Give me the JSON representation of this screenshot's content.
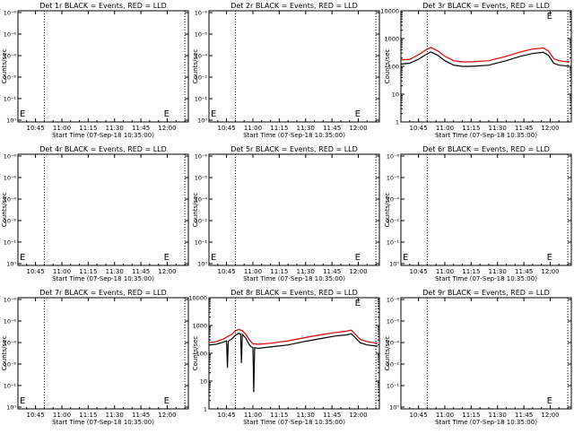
{
  "window": {
    "background": "#ffffff"
  },
  "colors": {
    "events": "#000000",
    "lld": "#dd0000",
    "axis": "#000000",
    "marker_lines": "#000000"
  },
  "common": {
    "xlabel": "Start Time (07-Sep-18 10:35:00)",
    "ylabel": "Counts/sec",
    "x_tick_labels": [
      "10:45",
      "11:00",
      "11:15",
      "11:30",
      "11:45",
      "12:00"
    ],
    "x_range_minutes": [
      0,
      97
    ],
    "event_marker_minutes": [
      15,
      95
    ],
    "edge_marker": "E"
  },
  "chart_data": [
    {
      "name": "Det 1r",
      "title": "Det 1r BLACK = Events, RED = LLD",
      "type": "line",
      "yscale": "log",
      "y_tick_labels": [
        "10⁻⁸",
        "10⁻⁶",
        "10⁻⁴",
        "10⁻²",
        "10⁻¹",
        "10⁰"
      ],
      "edge_markers": [
        {
          "label": "E",
          "minute": 0
        },
        {
          "label": "E",
          "minute": 82
        }
      ],
      "series": []
    },
    {
      "name": "Det 2r",
      "title": "Det 2r BLACK = Events, RED = LLD",
      "type": "line",
      "yscale": "log",
      "y_tick_labels": [
        "10⁻⁸",
        "10⁻⁶",
        "10⁻⁴",
        "10⁻²",
        "10⁻¹",
        "10⁰"
      ],
      "edge_markers": [
        {
          "label": "E",
          "minute": 0
        },
        {
          "label": "E",
          "minute": 82
        }
      ],
      "series": []
    },
    {
      "name": "Det 3r",
      "title": "Det 3r BLACK = Events, RED = LLD",
      "type": "line",
      "yscale": "log",
      "ylim": [
        1,
        10000
      ],
      "y_tick_labels": [
        "1",
        "10",
        "100",
        "1000",
        "10000"
      ],
      "edge_markers": [
        {
          "label": "E",
          "minute": 82
        }
      ],
      "series": [
        {
          "name": "Events",
          "color": "#000000",
          "x": [
            0,
            5,
            10,
            14,
            17,
            21,
            25,
            30,
            35,
            40,
            50,
            60,
            68,
            75,
            81,
            84,
            87,
            90,
            93,
            96
          ],
          "y": [
            120,
            130,
            180,
            260,
            330,
            250,
            160,
            110,
            100,
            100,
            110,
            160,
            230,
            290,
            320,
            250,
            130,
            110,
            105,
            100
          ]
        },
        {
          "name": "LLD",
          "color": "#dd0000",
          "x": [
            0,
            5,
            10,
            14,
            17,
            21,
            25,
            30,
            35,
            40,
            50,
            60,
            68,
            75,
            81,
            84,
            87,
            90,
            93,
            96
          ],
          "y": [
            170,
            180,
            260,
            380,
            480,
            360,
            230,
            160,
            145,
            145,
            160,
            230,
            330,
            420,
            460,
            360,
            190,
            160,
            150,
            145
          ]
        }
      ]
    },
    {
      "name": "Det 4r",
      "title": "Det 4r BLACK = Events, RED = LLD",
      "type": "line",
      "yscale": "log",
      "y_tick_labels": [
        "10⁻⁸",
        "10⁻⁶",
        "10⁻⁴",
        "10⁻²",
        "10⁻¹",
        "10⁰"
      ],
      "edge_markers": [
        {
          "label": "E",
          "minute": 0
        },
        {
          "label": "E",
          "minute": 82
        }
      ],
      "series": []
    },
    {
      "name": "Det 5r",
      "title": "Det 5r BLACK = Events, RED = LLD",
      "type": "line",
      "yscale": "log",
      "y_tick_labels": [
        "10⁻⁸",
        "10⁻⁶",
        "10⁻⁴",
        "10⁻²",
        "10⁻¹",
        "10⁰"
      ],
      "edge_markers": [
        {
          "label": "E",
          "minute": 0
        },
        {
          "label": "E",
          "minute": 82
        }
      ],
      "series": []
    },
    {
      "name": "Det 6r",
      "title": "Det 6r BLACK = Events, RED = LLD",
      "type": "line",
      "yscale": "log",
      "y_tick_labels": [
        "10⁻⁸",
        "10⁻⁶",
        "10⁻⁴",
        "10⁻²",
        "10⁻¹",
        "10⁰"
      ],
      "edge_markers": [
        {
          "label": "E",
          "minute": 0
        },
        {
          "label": "E",
          "minute": 82
        }
      ],
      "series": []
    },
    {
      "name": "Det 7r",
      "title": "Det 7r BLACK = Events, RED = LLD",
      "type": "line",
      "yscale": "log",
      "y_tick_labels": [
        "10⁻⁸",
        "10⁻⁶",
        "10⁻⁴",
        "10⁻²",
        "10⁻¹",
        "10⁰"
      ],
      "edge_markers": [
        {
          "label": "E",
          "minute": 0
        },
        {
          "label": "E",
          "minute": 82
        }
      ],
      "series": []
    },
    {
      "name": "Det 8r",
      "title": "Det 8r BLACK = Events, RED = LLD",
      "type": "line",
      "yscale": "log",
      "ylim": [
        1,
        10000
      ],
      "y_tick_labels": [
        "1",
        "10",
        "100",
        "1000",
        "10000"
      ],
      "edge_markers": [
        {
          "label": "E",
          "minute": 82
        }
      ],
      "series": [
        {
          "name": "Events",
          "color": "#000000",
          "x": [
            0,
            4,
            8,
            10,
            10.5,
            11,
            13,
            15,
            17,
            18,
            18.5,
            19,
            21,
            22,
            23,
            24,
            25,
            25.5,
            26,
            28,
            35,
            45,
            55,
            65,
            72,
            78,
            81,
            83,
            86,
            90,
            96
          ],
          "y": [
            200,
            210,
            250,
            280,
            30,
            270,
            330,
            450,
            520,
            500,
            45,
            480,
            350,
            260,
            200,
            170,
            160,
            4,
            160,
            150,
            170,
            200,
            270,
            350,
            420,
            460,
            500,
            380,
            240,
            200,
            180
          ]
        },
        {
          "name": "LLD",
          "color": "#dd0000",
          "x": [
            0,
            4,
            8,
            10,
            13,
            15,
            17,
            19,
            21,
            23,
            25,
            28,
            35,
            45,
            55,
            65,
            72,
            78,
            81,
            83,
            86,
            90,
            96
          ],
          "y": [
            240,
            260,
            320,
            380,
            480,
            640,
            720,
            650,
            480,
            300,
            220,
            210,
            230,
            280,
            370,
            480,
            560,
            620,
            680,
            500,
            320,
            260,
            230
          ]
        }
      ]
    },
    {
      "name": "Det 9r",
      "title": "Det 9r BLACK = Events, RED = LLD",
      "type": "line",
      "yscale": "log",
      "y_tick_labels": [
        "10⁻⁸",
        "10⁻⁶",
        "10⁻⁴",
        "10⁻²",
        "10⁻¹",
        "10⁰"
      ],
      "edge_markers": [
        {
          "label": "E",
          "minute": 82
        }
      ],
      "series": []
    }
  ]
}
